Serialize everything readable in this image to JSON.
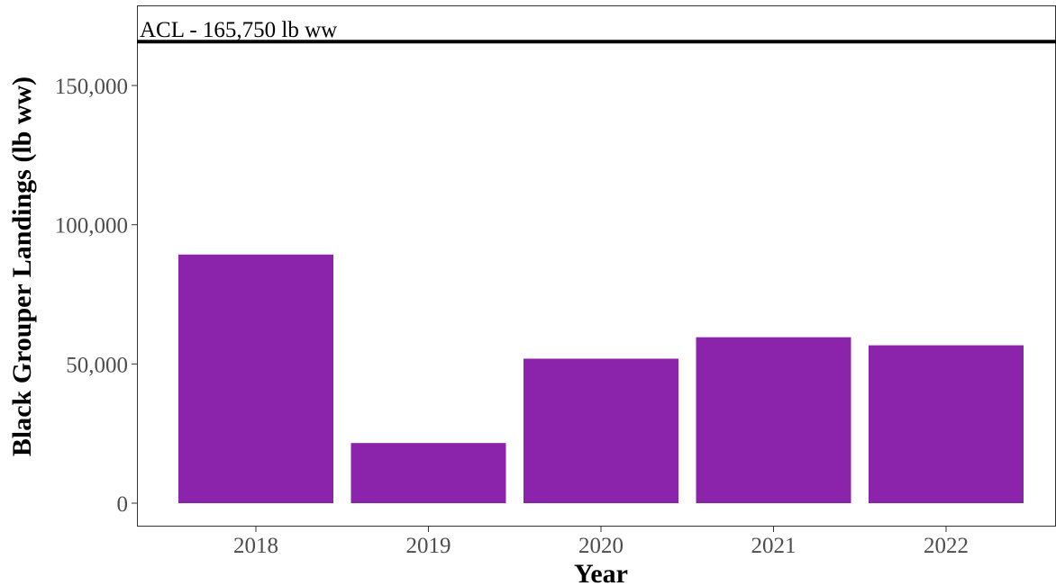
{
  "chart_data": {
    "type": "bar",
    "categories": [
      "2018",
      "2019",
      "2020",
      "2021",
      "2022"
    ],
    "values": [
      89300,
      21600,
      51900,
      59600,
      56700
    ],
    "xlabel": "Year",
    "ylabel": "Black Grouper Landings (lb ww)",
    "ylim": [
      0,
      170000
    ],
    "yticks": [
      0,
      50000,
      100000,
      150000
    ],
    "ytick_labels": [
      "0",
      "50,000",
      "100,000",
      "150,000"
    ],
    "reference_line": {
      "value": 165750,
      "label": "ACL - 165,750 lb ww"
    },
    "grid": false,
    "legend": "none",
    "colors": {
      "bar": "#8B24AA",
      "reference_line": "#000000",
      "axis": "#333333"
    }
  }
}
